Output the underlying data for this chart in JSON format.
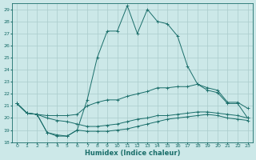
{
  "title": "",
  "xlabel": "Humidex (Indice chaleur)",
  "ylabel": "",
  "bg_color": "#cce8e8",
  "line_color": "#1a6e6a",
  "grid_color": "#aacccc",
  "xlim": [
    -0.5,
    23.5
  ],
  "ylim": [
    18,
    29.5
  ],
  "yticks": [
    18,
    19,
    20,
    21,
    22,
    23,
    24,
    25,
    26,
    27,
    28,
    29
  ],
  "xticks": [
    0,
    1,
    2,
    3,
    4,
    5,
    6,
    7,
    8,
    9,
    10,
    11,
    12,
    13,
    14,
    15,
    16,
    17,
    18,
    19,
    20,
    21,
    22,
    23
  ],
  "line1_x": [
    0,
    1,
    2,
    3,
    4,
    5,
    6,
    7,
    8,
    9,
    10,
    11,
    12,
    13,
    14,
    15,
    16,
    17,
    18,
    19,
    20,
    21,
    22,
    23
  ],
  "line1_y": [
    21.2,
    20.4,
    20.3,
    18.8,
    18.6,
    18.5,
    19.0,
    21.5,
    25.0,
    27.2,
    27.2,
    29.3,
    27.0,
    29.0,
    28.0,
    27.8,
    26.8,
    24.3,
    22.8,
    22.3,
    22.1,
    21.2,
    21.2,
    20.0
  ],
  "line2_x": [
    0,
    1,
    2,
    3,
    4,
    5,
    6,
    7,
    8,
    9,
    10,
    11,
    12,
    13,
    14,
    15,
    16,
    17,
    18,
    19,
    20,
    21,
    22,
    23
  ],
  "line2_y": [
    21.2,
    20.4,
    20.3,
    20.2,
    20.2,
    20.2,
    20.3,
    21.0,
    21.3,
    21.5,
    21.5,
    21.8,
    22.0,
    22.2,
    22.5,
    22.5,
    22.6,
    22.6,
    22.8,
    22.5,
    22.3,
    21.3,
    21.3,
    20.8
  ],
  "line3_x": [
    0,
    1,
    2,
    3,
    4,
    5,
    6,
    7,
    8,
    9,
    10,
    11,
    12,
    13,
    14,
    15,
    16,
    17,
    18,
    19,
    20,
    21,
    22,
    23
  ],
  "line3_y": [
    21.2,
    20.4,
    20.3,
    20.0,
    19.8,
    19.7,
    19.5,
    19.3,
    19.3,
    19.4,
    19.5,
    19.7,
    19.9,
    20.0,
    20.2,
    20.2,
    20.3,
    20.4,
    20.5,
    20.5,
    20.4,
    20.3,
    20.2,
    20.0
  ],
  "line4_x": [
    0,
    1,
    2,
    3,
    4,
    5,
    6,
    7,
    8,
    9,
    10,
    11,
    12,
    13,
    14,
    15,
    16,
    17,
    18,
    19,
    20,
    21,
    22,
    23
  ],
  "line4_y": [
    21.2,
    20.4,
    20.3,
    18.8,
    18.5,
    18.5,
    19.0,
    18.9,
    18.9,
    18.9,
    19.0,
    19.1,
    19.3,
    19.5,
    19.7,
    19.9,
    20.0,
    20.1,
    20.2,
    20.3,
    20.2,
    20.0,
    19.9,
    19.8
  ]
}
